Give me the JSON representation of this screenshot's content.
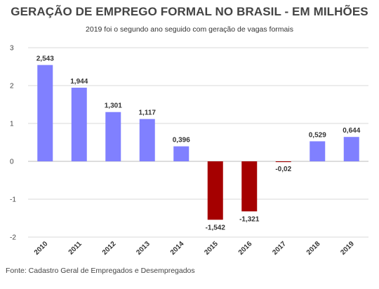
{
  "header": {
    "title": "GERAÇÃO DE EMPREGO FORMAL NO BRASIL - EM MILHÕES",
    "subtitle": "2019 foi o segundo ano seguido com geração de vagas formais"
  },
  "footer": {
    "source": "Fonte: Cadastro Geral de Empregados e Desempregados"
  },
  "colors": {
    "positive": "#8080ff",
    "negative": "#a50000",
    "grid": "#d9d9d9",
    "zero_line": "#bbbbbb"
  },
  "chart_data": {
    "type": "bar",
    "title": "GERAÇÃO DE EMPREGO FORMAL NO BRASIL - EM MILHÕES",
    "subtitle": "2019 foi o segundo ano seguido com geração de vagas formais",
    "categories": [
      "2010",
      "2011",
      "2012",
      "2013",
      "2014",
      "2015",
      "2016",
      "2017",
      "2018",
      "2019"
    ],
    "values": [
      2.543,
      1.944,
      1.301,
      1.117,
      0.396,
      -1.542,
      -1.321,
      -0.02,
      0.529,
      0.644
    ],
    "data_labels": [
      "2,543",
      "1,944",
      "1,301",
      "1,117",
      "0,396",
      "-1,542",
      "-1,321",
      "-0,02",
      "0,529",
      "0,644"
    ],
    "ylim": [
      -2,
      3
    ],
    "yticks": [
      -2,
      -1,
      0,
      1,
      2,
      3
    ],
    "ytick_labels": [
      "-2",
      "-1",
      "0",
      "1",
      "2",
      "3"
    ],
    "xlabel": "",
    "ylabel": "",
    "grid": true,
    "legend": false
  }
}
